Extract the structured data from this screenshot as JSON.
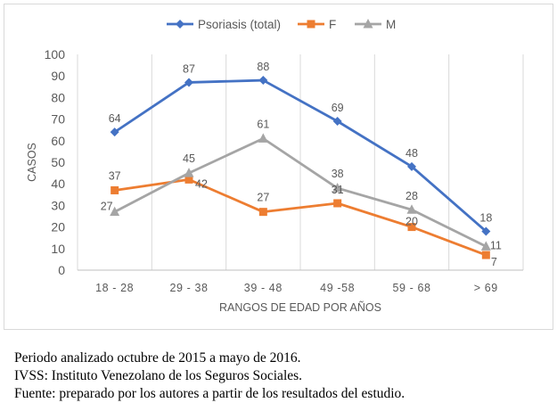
{
  "chart_data": {
    "type": "line",
    "categories": [
      "18 - 28",
      "29 - 38",
      "39 - 48",
      "49 -58",
      "59 - 68",
      "> 69"
    ],
    "series": [
      {
        "name": "Psoriasis (total)",
        "values": [
          64,
          87,
          88,
          69,
          48,
          18
        ],
        "color": "#4472c4",
        "marker": "diamond"
      },
      {
        "name": "F",
        "values": [
          37,
          42,
          27,
          31,
          20,
          7
        ],
        "color": "#ed7d31",
        "marker": "square"
      },
      {
        "name": "M",
        "values": [
          27,
          45,
          61,
          38,
          28,
          11
        ],
        "color": "#a5a5a5",
        "marker": "triangle"
      }
    ],
    "xlabel": "RANGOS DE EDAD POR AÑOS",
    "ylabel": "CASOS",
    "ylim": [
      0,
      100
    ],
    "yticks": [
      "0",
      "10",
      "20",
      "30",
      "40",
      "50",
      "60",
      "70",
      "80",
      "90",
      "100"
    ],
    "grid": "vertical category gridlines",
    "legend_position": "top",
    "data_labels": true
  },
  "notes": [
    "Periodo analizado octubre de 2015 a mayo de 2016.",
    "IVSS: Instituto Venezolano de los Seguros Sociales.",
    "Fuente: preparado por los autores a partir de los resultados del estudio."
  ]
}
